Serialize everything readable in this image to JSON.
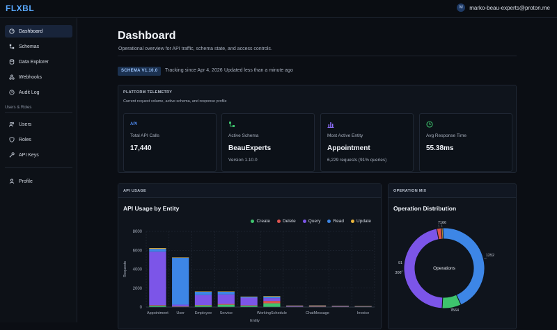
{
  "app": {
    "logo": "FLXBL",
    "user_initial": "M",
    "user_email": "marko-beau-experts@proton.me"
  },
  "sidebar": {
    "items": [
      {
        "label": "Dashboard",
        "icon": "dashboard-icon",
        "active": true
      },
      {
        "label": "Schemas",
        "icon": "schema-icon"
      },
      {
        "label": "Data Explorer",
        "icon": "database-icon"
      },
      {
        "label": "Webhooks",
        "icon": "webhook-icon"
      },
      {
        "label": "Audit Log",
        "icon": "clock-icon"
      }
    ],
    "section_label": "Users & Roles",
    "section_items": [
      {
        "label": "Users",
        "icon": "users-icon"
      },
      {
        "label": "Roles",
        "icon": "shield-icon"
      },
      {
        "label": "API Keys",
        "icon": "key-icon"
      }
    ],
    "footer_items": [
      {
        "label": "Profile",
        "icon": "user-icon"
      }
    ]
  },
  "header": {
    "title": "Dashboard",
    "subtitle": "Operational overview for API traffic, schema state, and access controls.",
    "schema_badge": "SCHEMA V1.10.0",
    "tracking": "Tracking since Apr 4, 2026",
    "updated": "Updated less than a minute ago"
  },
  "telemetry": {
    "heading": "PLATFORM TELEMETRY",
    "subheading": "Current request volume, active schema, and response profile",
    "stats": [
      {
        "icon_text": "API",
        "label": "Total API Calls",
        "value": "17,440",
        "sub": "",
        "icon": "api-icon",
        "color": "#4f8df5"
      },
      {
        "label": "Active Schema",
        "value": "BeauExperts",
        "sub": "Version 1.10.0",
        "icon": "schema-icon",
        "color": "#3ec46d"
      },
      {
        "label": "Most Active Entity",
        "value": "Appointment",
        "sub": "6,229 requests (91% queries)",
        "icon": "bar-chart-icon",
        "color": "#8b6cf6"
      },
      {
        "label": "Avg Response Time",
        "value": "55.38ms",
        "sub": "",
        "icon": "clock-icon",
        "color": "#3ec46d"
      }
    ]
  },
  "api_usage": {
    "heading": "API USAGE",
    "title": "API Usage by Entity",
    "legend": [
      {
        "name": "Create",
        "color": "#3ec46d"
      },
      {
        "name": "Delete",
        "color": "#e0544f"
      },
      {
        "name": "Query",
        "color": "#7c55e8"
      },
      {
        "name": "Read",
        "color": "#3d86e6"
      },
      {
        "name": "Update",
        "color": "#e8b43c"
      }
    ]
  },
  "operation_mix": {
    "heading": "OPERATION MIX",
    "title": "Operation Distribution",
    "center_label": "Operations"
  },
  "chart_data": [
    {
      "type": "bar",
      "stacked": true,
      "title": "API Usage by Entity",
      "ylabel": "Requests",
      "xlabel": "Entity",
      "ylim": [
        0,
        8000
      ],
      "yticks": [
        0,
        2000,
        4000,
        6000,
        8000
      ],
      "categories": [
        "Appointment",
        "User",
        "Employee",
        "Service",
        "",
        "WorkingSchedule",
        "",
        "ChatMessage",
        "",
        "Invoice"
      ],
      "tick_labels": [
        "Appointment",
        "User",
        "Employee",
        "Service",
        "WorkingSchedule",
        "ChatMessage",
        "Invoice"
      ],
      "series": [
        {
          "name": "Create",
          "color": "#3ec46d",
          "values": [
            150,
            60,
            180,
            250,
            150,
            400,
            40,
            60,
            40,
            30
          ]
        },
        {
          "name": "Delete",
          "color": "#e0544f",
          "values": [
            50,
            20,
            40,
            80,
            40,
            250,
            10,
            20,
            10,
            10
          ]
        },
        {
          "name": "Query",
          "color": "#7c55e8",
          "values": [
            5650,
            180,
            1050,
            1000,
            800,
            300,
            60,
            50,
            50,
            30
          ]
        },
        {
          "name": "Read",
          "color": "#3d86e6",
          "values": [
            300,
            4950,
            350,
            300,
            100,
            150,
            40,
            30,
            30,
            20
          ]
        },
        {
          "name": "Update",
          "color": "#e8b43c",
          "values": [
            80,
            40,
            30,
            20,
            20,
            50,
            10,
            10,
            10,
            10
          ]
        }
      ],
      "legend_position": "top-right",
      "grid": true
    },
    {
      "type": "pie",
      "donut": true,
      "title": "Operation Distribution",
      "slices": [
        {
          "name": "Read",
          "value": 7166,
          "label": "7166",
          "color": "#3d86e6"
        },
        {
          "name": "Create",
          "value": 1252,
          "label": "1252",
          "color": "#3ec46d"
        },
        {
          "name": "Query",
          "value": 7564,
          "label": "7564",
          "color": "#7c55e8"
        },
        {
          "name": "Delete",
          "value": 306,
          "label": "306",
          "color": "#e0544f"
        },
        {
          "name": "Update",
          "value": 91,
          "label": "91",
          "color": "#e8b43c"
        }
      ]
    }
  ]
}
